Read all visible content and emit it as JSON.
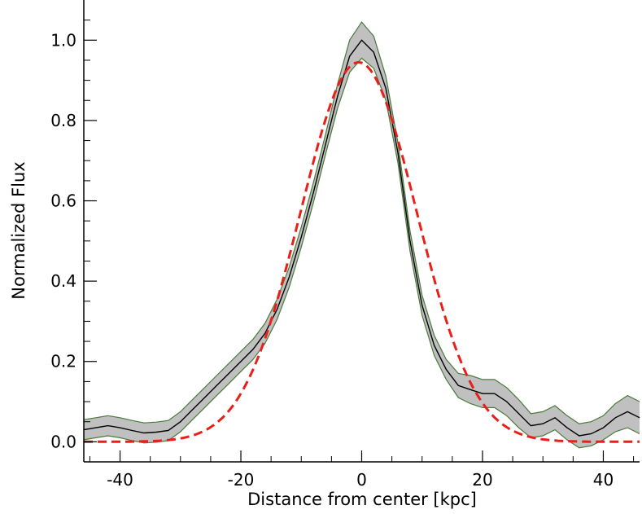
{
  "chart_data": {
    "type": "line",
    "title": "",
    "xlabel": "Distance from center [kpc]",
    "ylabel": "Normalized Flux",
    "xlim": [
      -46,
      46
    ],
    "ylim": [
      -0.05,
      1.1
    ],
    "x_ticks": [
      -40,
      -20,
      0,
      20,
      40
    ],
    "x_tick_labels": [
      "-40",
      "-20",
      "0",
      "20",
      "40"
    ],
    "y_ticks": [
      0.0,
      0.2,
      0.4,
      0.6,
      0.8,
      1.0
    ],
    "y_tick_labels": [
      "0.0",
      "0.2",
      "0.4",
      "0.6",
      "0.8",
      "1.0"
    ],
    "grid": false,
    "colors": {
      "band_fill": "#c0c0c0",
      "band_edge": "#4a7a3a",
      "profile": "#000000",
      "fit": "#e8201a"
    },
    "profile": {
      "x": [
        -46,
        -44,
        -42,
        -40,
        -38,
        -36,
        -34,
        -32,
        -30,
        -28,
        -26,
        -24,
        -22,
        -20,
        -18,
        -16,
        -14,
        -12,
        -10,
        -8,
        -6,
        -4,
        -2,
        0,
        2,
        4,
        6,
        8,
        10,
        12,
        14,
        16,
        18,
        20,
        22,
        24,
        26,
        28,
        30,
        32,
        34,
        36,
        38,
        40,
        42,
        44,
        46
      ],
      "y": [
        0.03,
        0.035,
        0.04,
        0.035,
        0.028,
        0.022,
        0.024,
        0.028,
        0.05,
        0.08,
        0.11,
        0.14,
        0.17,
        0.2,
        0.23,
        0.27,
        0.33,
        0.41,
        0.51,
        0.62,
        0.74,
        0.86,
        0.96,
        1.0,
        0.97,
        0.88,
        0.72,
        0.5,
        0.34,
        0.24,
        0.18,
        0.14,
        0.13,
        0.12,
        0.12,
        0.1,
        0.07,
        0.04,
        0.045,
        0.06,
        0.035,
        0.015,
        0.02,
        0.035,
        0.06,
        0.075,
        0.06
      ],
      "band_halfwidth": [
        0.025,
        0.025,
        0.025,
        0.025,
        0.025,
        0.025,
        0.025,
        0.025,
        0.025,
        0.025,
        0.025,
        0.025,
        0.025,
        0.025,
        0.025,
        0.025,
        0.025,
        0.025,
        0.025,
        0.025,
        0.025,
        0.03,
        0.04,
        0.045,
        0.04,
        0.03,
        0.025,
        0.025,
        0.025,
        0.025,
        0.025,
        0.03,
        0.035,
        0.035,
        0.035,
        0.035,
        0.035,
        0.03,
        0.03,
        0.03,
        0.03,
        0.03,
        0.03,
        0.03,
        0.035,
        0.04,
        0.04
      ]
    },
    "gaussian_fit": {
      "style": "dashed",
      "amplitude": 0.945,
      "center": -0.5,
      "sigma": 9.6
    }
  }
}
